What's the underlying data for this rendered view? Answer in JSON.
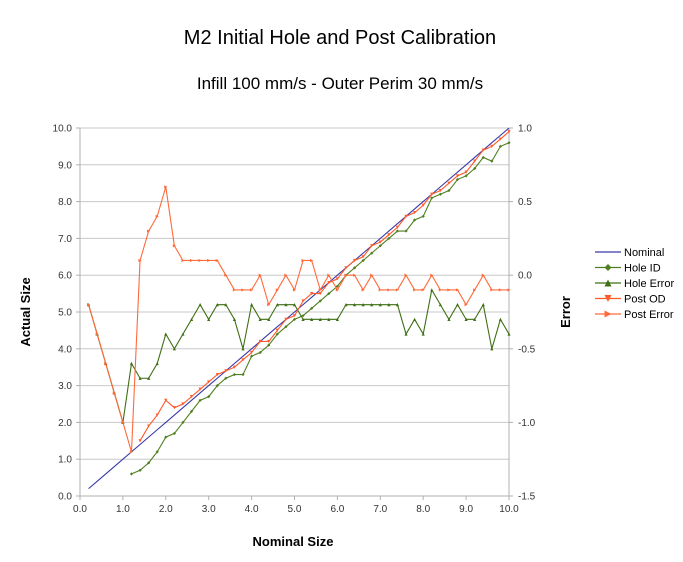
{
  "chart_data": {
    "type": "line",
    "title": "M2 Initial Hole and Post Calibration",
    "subtitle": "Infill 100 mm/s - Outer Perim 30 mm/s",
    "xlabel": "Nominal Size",
    "ylabel": "Actual Size",
    "y2label": "Error",
    "xlim": [
      0,
      10
    ],
    "ylim": [
      0,
      10
    ],
    "y2lim": [
      -1.5,
      1.0
    ],
    "xticks": [
      "0.0",
      "1.0",
      "2.0",
      "3.0",
      "4.0",
      "5.0",
      "6.0",
      "7.0",
      "8.0",
      "9.0",
      "10.0"
    ],
    "yticks": [
      "0.0",
      "1.0",
      "2.0",
      "3.0",
      "4.0",
      "5.0",
      "6.0",
      "7.0",
      "8.0",
      "9.0",
      "10.0"
    ],
    "y2ticks": [
      "-1.5",
      "-1.0",
      "-0.5",
      "0.0",
      "0.5",
      "1.0"
    ],
    "grid": "horizontal",
    "legend": "right",
    "x": [
      0.2,
      0.4,
      0.6,
      0.8,
      1.0,
      1.2,
      1.4,
      1.6,
      1.8,
      2.0,
      2.2,
      2.4,
      2.6,
      2.8,
      3.0,
      3.2,
      3.4,
      3.6,
      3.8,
      4.0,
      4.2,
      4.4,
      4.6,
      4.8,
      5.0,
      5.2,
      5.4,
      5.6,
      5.8,
      6.0,
      6.2,
      6.4,
      6.6,
      6.8,
      7.0,
      7.2,
      7.4,
      7.6,
      7.8,
      8.0,
      8.2,
      8.4,
      8.6,
      8.8,
      9.0,
      9.2,
      9.4,
      9.6,
      9.8,
      10.0
    ],
    "series": [
      {
        "name": "Nominal",
        "axis": "left",
        "color": "#3a3aa8",
        "marker": "none",
        "values": [
          0.2,
          0.4,
          0.6,
          0.8,
          1.0,
          1.2,
          1.4,
          1.6,
          1.8,
          2.0,
          2.2,
          2.4,
          2.6,
          2.8,
          3.0,
          3.2,
          3.4,
          3.6,
          3.8,
          4.0,
          4.2,
          4.4,
          4.6,
          4.8,
          5.0,
          5.2,
          5.4,
          5.6,
          5.8,
          6.0,
          6.2,
          6.4,
          6.6,
          6.8,
          7.0,
          7.2,
          7.4,
          7.6,
          7.8,
          8.0,
          8.2,
          8.4,
          8.6,
          8.8,
          9.0,
          9.2,
          9.4,
          9.6,
          9.8,
          10.0
        ]
      },
      {
        "name": "Hole ID",
        "axis": "left",
        "color": "#4f7f1f",
        "marker": "diamond",
        "values": [
          null,
          null,
          null,
          null,
          null,
          0.6,
          0.7,
          0.9,
          1.2,
          1.6,
          1.7,
          2.0,
          2.3,
          2.6,
          2.7,
          3.0,
          3.2,
          3.3,
          3.3,
          3.8,
          3.9,
          4.1,
          4.4,
          4.6,
          4.8,
          4.9,
          5.1,
          5.3,
          5.5,
          5.7,
          6.0,
          6.2,
          6.4,
          6.6,
          6.8,
          7.0,
          7.2,
          7.2,
          7.5,
          7.6,
          8.1,
          8.2,
          8.3,
          8.6,
          8.7,
          8.9,
          9.2,
          9.1,
          9.5,
          9.6
        ]
      },
      {
        "name": "Hole Error",
        "axis": "right",
        "color": "#3f6f14",
        "marker": "triangle-up",
        "values": [
          -0.2,
          -0.4,
          -0.6,
          -0.8,
          -1.0,
          -0.6,
          -0.7,
          -0.7,
          -0.6,
          -0.4,
          -0.5,
          -0.4,
          -0.3,
          -0.2,
          -0.3,
          -0.2,
          -0.2,
          -0.3,
          -0.5,
          -0.2,
          -0.3,
          -0.3,
          -0.2,
          -0.2,
          -0.2,
          -0.3,
          -0.3,
          -0.3,
          -0.3,
          -0.3,
          -0.2,
          -0.2,
          -0.2,
          -0.2,
          -0.2,
          -0.2,
          -0.2,
          -0.4,
          -0.3,
          -0.4,
          -0.1,
          -0.2,
          -0.3,
          -0.2,
          -0.3,
          -0.3,
          -0.2,
          -0.5,
          -0.3,
          -0.4
        ]
      },
      {
        "name": "Post OD",
        "axis": "left",
        "color": "#ff5a2a",
        "marker": "triangle-down",
        "values": [
          null,
          null,
          null,
          null,
          null,
          null,
          1.5,
          1.9,
          2.2,
          2.6,
          2.4,
          2.5,
          2.7,
          2.9,
          3.1,
          3.3,
          3.4,
          3.5,
          3.7,
          3.9,
          4.2,
          4.2,
          4.5,
          4.8,
          4.9,
          5.3,
          5.5,
          5.5,
          5.8,
          5.9,
          6.2,
          6.4,
          6.5,
          6.8,
          6.9,
          7.1,
          7.3,
          7.6,
          7.7,
          7.9,
          8.2,
          8.3,
          8.5,
          8.7,
          8.8,
          9.1,
          9.4,
          9.5,
          9.7,
          9.9
        ]
      },
      {
        "name": "Post Error",
        "axis": "right",
        "color": "#ff6a3a",
        "marker": "triangle-right",
        "values": [
          -0.2,
          -0.4,
          -0.6,
          -0.8,
          -1.0,
          -1.2,
          0.1,
          0.3,
          0.4,
          0.6,
          0.2,
          0.1,
          0.1,
          0.1,
          0.1,
          0.1,
          0.0,
          -0.1,
          -0.1,
          -0.1,
          0.0,
          -0.2,
          -0.1,
          0.0,
          -0.1,
          0.1,
          0.1,
          -0.1,
          0.0,
          -0.1,
          0.0,
          0.0,
          -0.1,
          0.0,
          -0.1,
          -0.1,
          -0.1,
          0.0,
          -0.1,
          -0.1,
          0.0,
          -0.1,
          -0.1,
          -0.1,
          -0.2,
          -0.1,
          0.0,
          -0.1,
          -0.1,
          -0.1
        ]
      }
    ]
  }
}
